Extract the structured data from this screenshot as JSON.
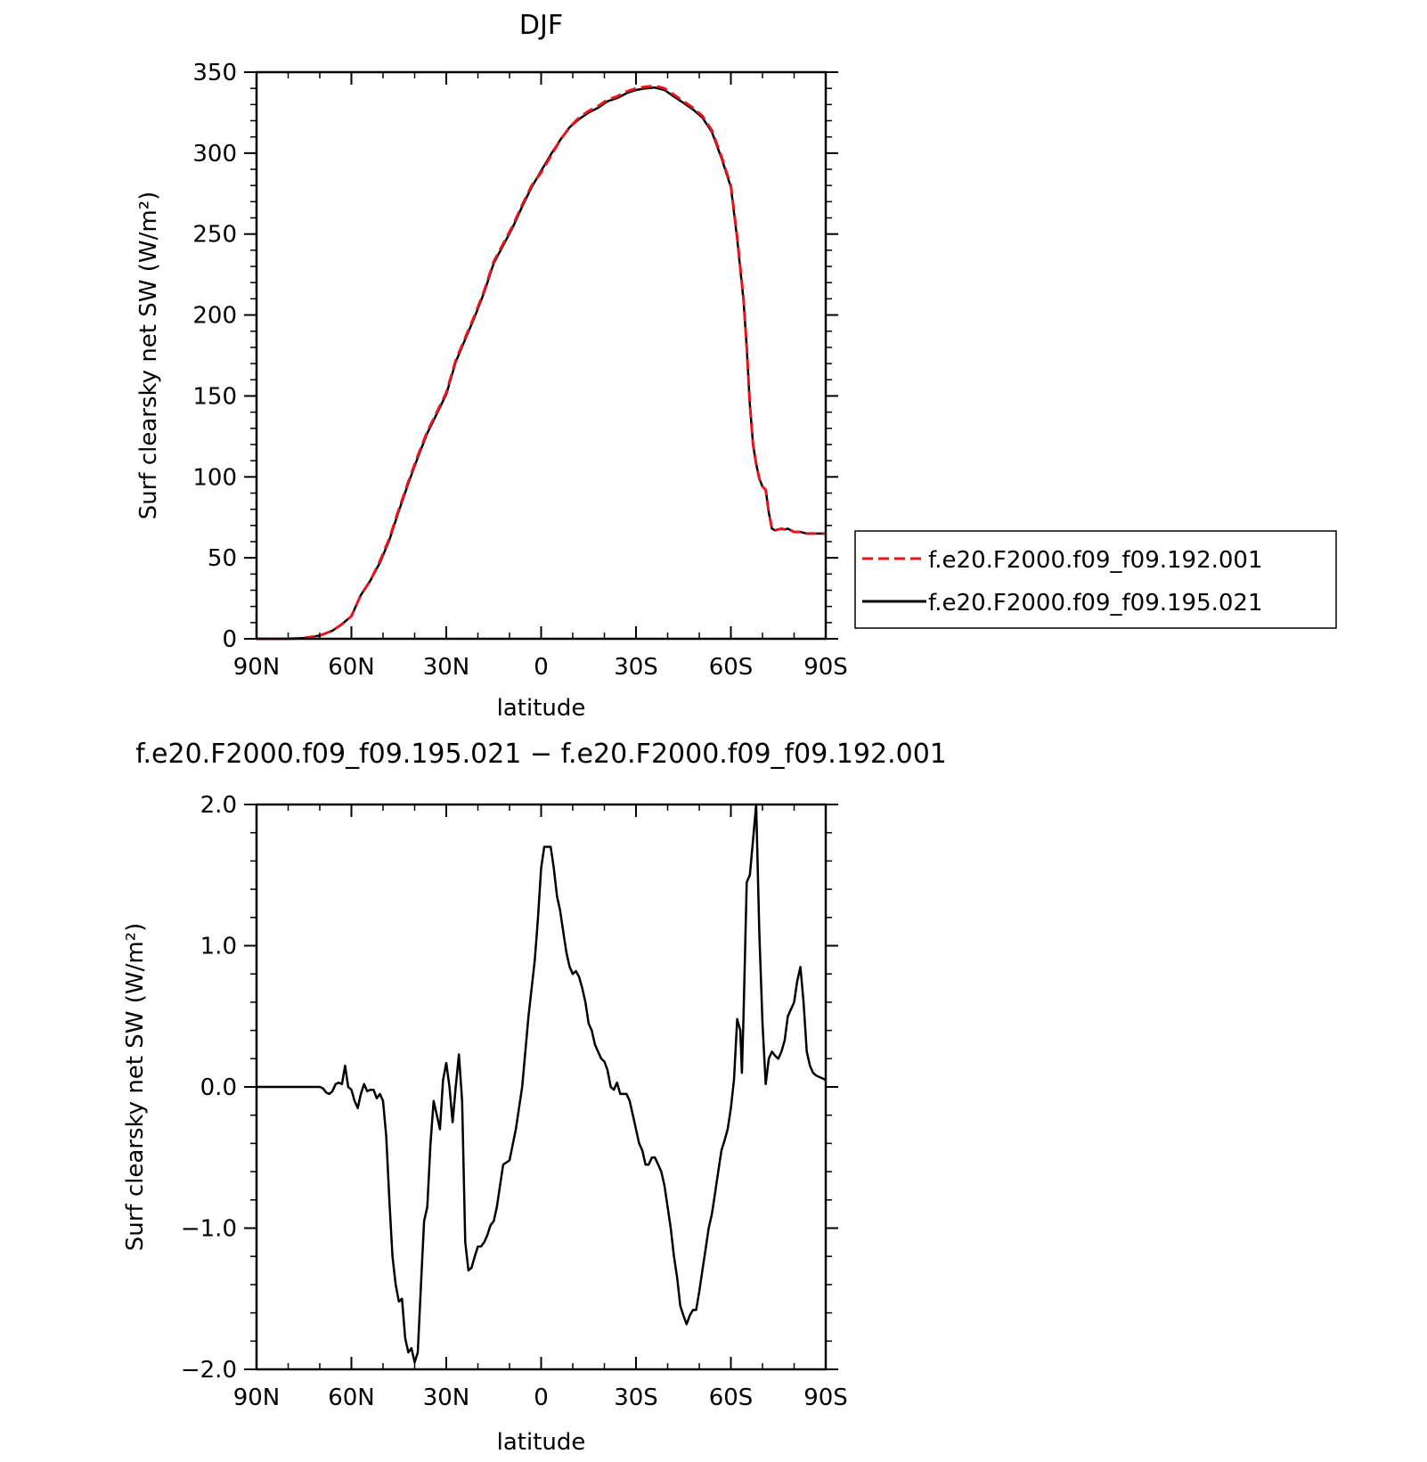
{
  "chart_data": [
    {
      "type": "line",
      "title": "DJF",
      "xlabel": "latitude",
      "ylabel": "Surf clearsky net SW (W/m²)",
      "xlim": [
        90,
        -90
      ],
      "ylim": [
        0,
        350
      ],
      "x_ticks": [
        90,
        60,
        30,
        0,
        -30,
        -60,
        -90
      ],
      "x_tick_labels": [
        "90N",
        "60N",
        "30N",
        "0",
        "30S",
        "60S",
        "90S"
      ],
      "y_ticks": [
        0,
        50,
        100,
        150,
        200,
        250,
        300,
        350
      ],
      "y_tick_labels": [
        "0",
        "50",
        "100",
        "150",
        "200",
        "250",
        "300",
        "350"
      ],
      "legend": {
        "placement": "right",
        "entries": [
          "f.e20.F2000.f09_f09.192.001",
          "f.e20.F2000.f09_f09.195.021"
        ]
      },
      "series": [
        {
          "name": "f.e20.F2000.f09_f09.192.001",
          "color": "#e8141c",
          "style": "dashed",
          "x": [
            90,
            80,
            75,
            70,
            66,
            63,
            60,
            57,
            54,
            51,
            48,
            45,
            42,
            39,
            36,
            33,
            30,
            27,
            24,
            21,
            18,
            15,
            12,
            9,
            6,
            3,
            0,
            -3,
            -6,
            -9,
            -12,
            -15,
            -18,
            -21,
            -24,
            -27,
            -30,
            -33,
            -36,
            -39,
            -42,
            -45,
            -48,
            -51,
            -54,
            -57,
            -60,
            -62,
            -64,
            -65,
            -66,
            -67,
            -68,
            -69,
            -70,
            -71,
            -72,
            -73,
            -74,
            -75,
            -76,
            -77,
            -78,
            -79,
            -80,
            -82,
            -84,
            -86,
            -88,
            -90
          ],
          "y": [
            0,
            0,
            0.5,
            2,
            5,
            9,
            14,
            27,
            36,
            48,
            62,
            80,
            97,
            113,
            128,
            140,
            152,
            172,
            186,
            200,
            215,
            233,
            244,
            255,
            268,
            280,
            288,
            298,
            308,
            316,
            322,
            326,
            329,
            333,
            335,
            338,
            340,
            341,
            341.5,
            340,
            336,
            332,
            328,
            323,
            314,
            298,
            280,
            248,
            210,
            180,
            145,
            120,
            108,
            99,
            94,
            92,
            78,
            68,
            67,
            67.5,
            68,
            67.5,
            68,
            67,
            66,
            66,
            65,
            65,
            65,
            65
          ]
        },
        {
          "name": "f.e20.F2000.f09_f09.195.021",
          "color": "#000000",
          "style": "solid",
          "x": [
            90,
            80,
            75,
            70,
            66,
            63,
            60,
            57,
            54,
            51,
            48,
            45,
            42,
            39,
            36,
            33,
            30,
            27,
            24,
            21,
            18,
            15,
            12,
            9,
            6,
            3,
            0,
            -3,
            -6,
            -9,
            -12,
            -15,
            -18,
            -21,
            -24,
            -27,
            -30,
            -33,
            -36,
            -39,
            -42,
            -45,
            -48,
            -51,
            -54,
            -57,
            -60,
            -62,
            -64,
            -65,
            -66,
            -67,
            -68,
            -69,
            -70,
            -71,
            -72,
            -73,
            -74,
            -75,
            -76,
            -77,
            -78,
            -79,
            -80,
            -82,
            -84,
            -86,
            -88,
            -90
          ],
          "y": [
            0,
            0,
            0.5,
            2,
            5,
            9,
            14,
            27,
            36,
            47,
            61,
            79,
            96,
            112,
            127,
            139,
            151,
            171,
            185,
            199,
            214,
            232,
            243,
            254,
            267,
            279,
            289,
            299,
            308,
            316,
            321,
            325,
            328,
            332,
            334,
            337,
            339,
            340,
            340.5,
            339,
            335,
            331,
            327,
            322,
            313,
            297,
            279,
            247,
            209,
            180,
            145,
            120,
            108,
            99,
            94,
            92,
            78,
            68,
            67,
            67.5,
            68,
            67.5,
            68,
            67,
            66,
            66,
            65,
            65,
            65,
            65
          ]
        }
      ]
    },
    {
      "type": "line",
      "title": "f.e20.F2000.f09_f09.195.021 − f.e20.F2000.f09_f09.192.001",
      "xlabel": "latitude",
      "ylabel": "Surf clearsky net SW (W/m²)",
      "xlim": [
        90,
        -90
      ],
      "ylim": [
        -2,
        2
      ],
      "x_ticks": [
        90,
        60,
        30,
        0,
        -30,
        -60,
        -90
      ],
      "x_tick_labels": [
        "90N",
        "60N",
        "30N",
        "0",
        "30S",
        "60S",
        "90S"
      ],
      "y_ticks": [
        -2,
        -1,
        0,
        1,
        2
      ],
      "y_tick_labels": [
        "−2.0",
        "−1.0",
        "0.0",
        "1.0",
        "2.0"
      ],
      "series": [
        {
          "color": "#000000",
          "style": "solid",
          "x": [
            90,
            80,
            70,
            69,
            68,
            67,
            66,
            65,
            64,
            63,
            62,
            61,
            60,
            59,
            58,
            57,
            56,
            55,
            54,
            53,
            52,
            51,
            50,
            49,
            48,
            47,
            46,
            45,
            44,
            43,
            42,
            41,
            40,
            39,
            38,
            37,
            36,
            35,
            34,
            33,
            32,
            31,
            30,
            29,
            28,
            27,
            26,
            25,
            24,
            23,
            22,
            21,
            20,
            19,
            18,
            17,
            16,
            15,
            14,
            13,
            12,
            10,
            8,
            6,
            4,
            2,
            1,
            0,
            -1,
            -2,
            -3,
            -4,
            -5,
            -6,
            -7,
            -8,
            -9,
            -10,
            -11,
            -12,
            -13,
            -14,
            -15,
            -16,
            -17,
            -18,
            -19,
            -20,
            -21,
            -22,
            -23,
            -24,
            -25,
            -26,
            -27,
            -28,
            -29,
            -30,
            -31,
            -32,
            -33,
            -34,
            -35,
            -36,
            -37,
            -38,
            -39,
            -40,
            -41,
            -42,
            -43,
            -44,
            -45,
            -46,
            -47,
            -48,
            -49,
            -50,
            -51,
            -52,
            -53,
            -54,
            -55,
            -56,
            -57,
            -58,
            -59,
            -60,
            -61,
            -62,
            -63,
            -63.5,
            -64,
            -65,
            -66,
            -67,
            -68,
            -69,
            -70,
            -71,
            -72,
            -73,
            -74,
            -75,
            -76,
            -77,
            -78,
            -79,
            -80,
            -81,
            -82,
            -83,
            -84,
            -85,
            -86,
            -87,
            -88,
            -89,
            -90
          ],
          "y": [
            0,
            0,
            0,
            -0.01,
            -0.04,
            -0.05,
            -0.03,
            0.02,
            0.03,
            0.02,
            0.15,
            0.0,
            -0.02,
            -0.1,
            -0.15,
            -0.05,
            0.02,
            -0.03,
            -0.02,
            -0.02,
            -0.08,
            -0.05,
            -0.1,
            -0.35,
            -0.8,
            -1.2,
            -1.4,
            -1.52,
            -1.5,
            -1.78,
            -1.88,
            -1.85,
            -1.95,
            -1.88,
            -1.4,
            -0.95,
            -0.85,
            -0.4,
            -0.1,
            -0.2,
            -0.3,
            0.05,
            0.17,
            0.0,
            -0.25,
            0.0,
            0.23,
            -0.1,
            -1.1,
            -1.3,
            -1.28,
            -1.2,
            -1.13,
            -1.13,
            -1.1,
            -1.05,
            -0.98,
            -0.95,
            -0.85,
            -0.7,
            -0.55,
            -0.52,
            -0.3,
            0.0,
            0.5,
            0.9,
            1.2,
            1.55,
            1.7,
            1.7,
            1.7,
            1.55,
            1.35,
            1.25,
            1.1,
            0.95,
            0.85,
            0.8,
            0.82,
            0.78,
            0.7,
            0.6,
            0.45,
            0.4,
            0.3,
            0.25,
            0.2,
            0.18,
            0.12,
            0.0,
            -0.02,
            0.03,
            -0.05,
            -0.05,
            -0.05,
            -0.1,
            -0.2,
            -0.3,
            -0.4,
            -0.45,
            -0.55,
            -0.55,
            -0.5,
            -0.5,
            -0.55,
            -0.6,
            -0.7,
            -0.85,
            -1.0,
            -1.2,
            -1.35,
            -1.55,
            -1.62,
            -1.68,
            -1.62,
            -1.58,
            -1.58,
            -1.45,
            -1.3,
            -1.15,
            -1.0,
            -0.9,
            -0.75,
            -0.6,
            -0.45,
            -0.38,
            -0.3,
            -0.15,
            0.05,
            0.48,
            0.4,
            0.1,
            0.5,
            1.45,
            1.5,
            1.75,
            2.0,
            1.1,
            0.45,
            0.02,
            0.2,
            0.25,
            0.22,
            0.2,
            0.25,
            0.33,
            0.5,
            0.55,
            0.6,
            0.75,
            0.85,
            0.6,
            0.25,
            0.15,
            0.1,
            0.08,
            0.07,
            0.06,
            0.05
          ]
        }
      ]
    }
  ]
}
